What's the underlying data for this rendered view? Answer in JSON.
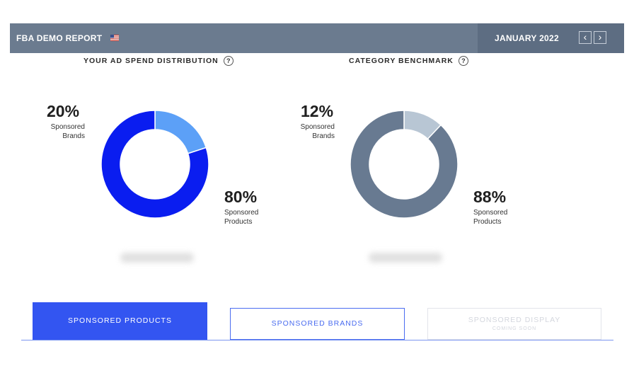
{
  "header": {
    "title": "FBA DEMO REPORT",
    "flag_icon": "us-flag-icon",
    "date": "JANUARY 2022"
  },
  "nav": {
    "prev": "‹",
    "next": "›"
  },
  "chart_data": [
    {
      "type": "pie",
      "title": "YOUR AD SPEND DISTRIBUTION",
      "categories": [
        "Sponsored Brands",
        "Sponsored Products"
      ],
      "values": [
        20,
        80
      ],
      "labels": [
        "20%",
        "80%"
      ],
      "colors": [
        "#5ca0f7",
        "#0a1df0"
      ]
    },
    {
      "type": "pie",
      "title": "CATEGORY BENCHMARK",
      "categories": [
        "Sponsored Brands",
        "Sponsored Products"
      ],
      "values": [
        12,
        88
      ],
      "labels": [
        "12%",
        "88%"
      ],
      "colors": [
        "#b8c6d4",
        "#687a91"
      ]
    }
  ],
  "tabs": [
    {
      "label": "SPONSORED PRODUCTS"
    },
    {
      "label": "SPONSORED BRANDS"
    },
    {
      "label": "SPONSORED DISPLAY",
      "sub": "COMING SOON"
    }
  ],
  "help_glyph": "?"
}
